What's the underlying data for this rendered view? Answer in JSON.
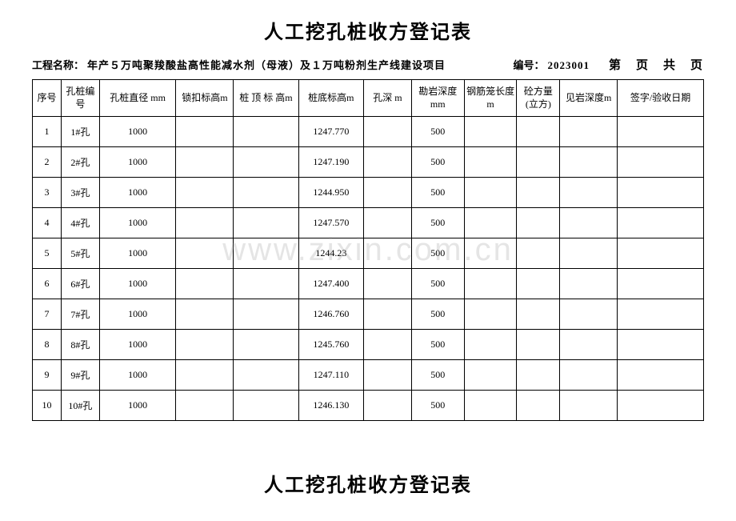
{
  "title": "人工挖孔桩收方登记表",
  "info": {
    "project_label": "工程名称：",
    "project_value": "年产５万吨聚羧酸盐高性能减水剂（母液）及１万吨粉剂生产线建设项目",
    "code_label": "编号：",
    "code_value": "2023001",
    "page_text": "第　页　共　页"
  },
  "headers": {
    "seq": "序号",
    "pile": "孔桩编号",
    "dia": "孔桩直径 mm",
    "lock": "锁扣标高m",
    "top": "桩 顶 标 高m",
    "bot": "桩底标高m",
    "depth": "孔深 m",
    "rock": "勘岩深度 mm",
    "cage": "钢筋笼长度 m",
    "vol": "砼方量(立方)",
    "rdepth": "见岩深度m",
    "sign": "签字/验收日期"
  },
  "rows": [
    {
      "seq": "1",
      "pile": "1#孔",
      "dia": "1000",
      "lock": "",
      "top": "",
      "bot": "1247.770",
      "depth": "",
      "rock": "500",
      "cage": "",
      "vol": "",
      "rdepth": "",
      "sign": ""
    },
    {
      "seq": "2",
      "pile": "2#孔",
      "dia": "1000",
      "lock": "",
      "top": "",
      "bot": "1247.190",
      "depth": "",
      "rock": "500",
      "cage": "",
      "vol": "",
      "rdepth": "",
      "sign": ""
    },
    {
      "seq": "3",
      "pile": "3#孔",
      "dia": "1000",
      "lock": "",
      "top": "",
      "bot": "1244.950",
      "depth": "",
      "rock": "500",
      "cage": "",
      "vol": "",
      "rdepth": "",
      "sign": ""
    },
    {
      "seq": "4",
      "pile": "4#孔",
      "dia": "1000",
      "lock": "",
      "top": "",
      "bot": "1247.570",
      "depth": "",
      "rock": "500",
      "cage": "",
      "vol": "",
      "rdepth": "",
      "sign": ""
    },
    {
      "seq": "5",
      "pile": "5#孔",
      "dia": "1000",
      "lock": "",
      "top": "",
      "bot": "1244.23",
      "depth": "",
      "rock": "500",
      "cage": "",
      "vol": "",
      "rdepth": "",
      "sign": ""
    },
    {
      "seq": "6",
      "pile": "6#孔",
      "dia": "1000",
      "lock": "",
      "top": "",
      "bot": "1247.400",
      "depth": "",
      "rock": "500",
      "cage": "",
      "vol": "",
      "rdepth": "",
      "sign": ""
    },
    {
      "seq": "7",
      "pile": "7#孔",
      "dia": "1000",
      "lock": "",
      "top": "",
      "bot": "1246.760",
      "depth": "",
      "rock": "500",
      "cage": "",
      "vol": "",
      "rdepth": "",
      "sign": ""
    },
    {
      "seq": "8",
      "pile": "8#孔",
      "dia": "1000",
      "lock": "",
      "top": "",
      "bot": "1245.760",
      "depth": "",
      "rock": "500",
      "cage": "",
      "vol": "",
      "rdepth": "",
      "sign": ""
    },
    {
      "seq": "9",
      "pile": "9#孔",
      "dia": "1000",
      "lock": "",
      "top": "",
      "bot": "1247.110",
      "depth": "",
      "rock": "500",
      "cage": "",
      "vol": "",
      "rdepth": "",
      "sign": ""
    },
    {
      "seq": "10",
      "pile": "10#孔",
      "dia": "1000",
      "lock": "",
      "top": "",
      "bot": "1246.130",
      "depth": "",
      "rock": "500",
      "cage": "",
      "vol": "",
      "rdepth": "",
      "sign": ""
    }
  ],
  "watermark": "www.zixin.com.cn",
  "second_title": "人工挖孔桩收方登记表"
}
